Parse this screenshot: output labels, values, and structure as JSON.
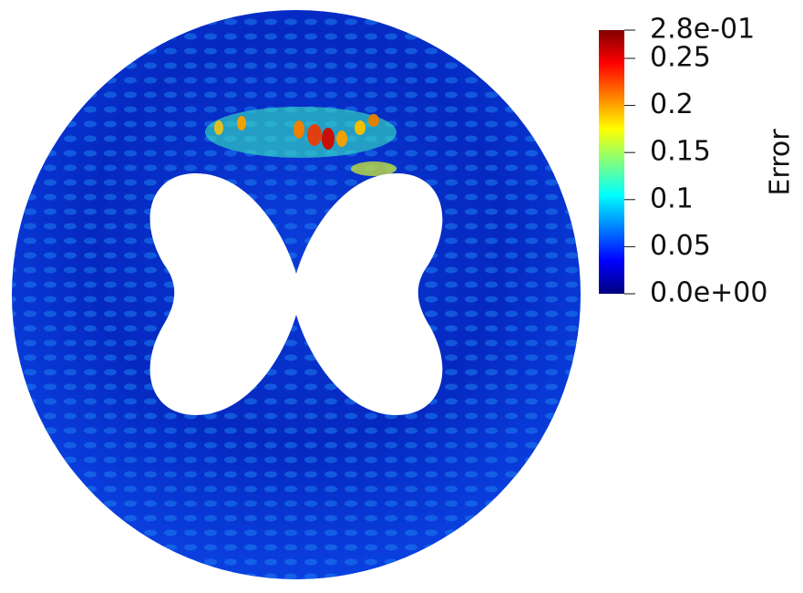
{
  "colorbar": {
    "title": "Error",
    "range": [
      0,
      0.28
    ],
    "ticks": [
      {
        "value": 0,
        "label": "0.0e+00"
      },
      0.05,
      0.1,
      0.15,
      0.2,
      0.25,
      {
        "value": 0.28,
        "label": "2.8e-01"
      }
    ],
    "colormap": [
      "#00007f",
      "#0000ff",
      "#007fff",
      "#00ffff",
      "#7fff7f",
      "#ffff00",
      "#ff7f00",
      "#ff0000",
      "#7f0000"
    ]
  }
}
